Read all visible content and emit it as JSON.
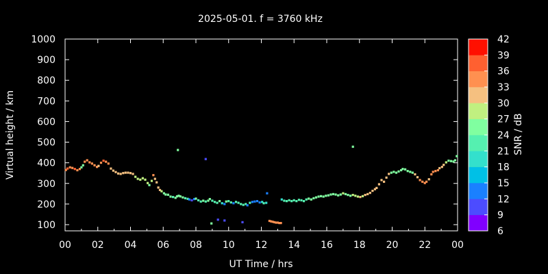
{
  "chart_data": {
    "type": "scatter",
    "title": "2025-05-01. f = 3760 kHz",
    "xlabel": "UT Time / hrs",
    "ylabel": "Virtual height / km",
    "xlim": [
      0,
      24
    ],
    "ylim": [
      70,
      1000
    ],
    "x_ticks": [
      "00",
      "02",
      "04",
      "06",
      "08",
      "10",
      "12",
      "14",
      "16",
      "18",
      "20",
      "22",
      "00"
    ],
    "y_ticks": [
      100,
      200,
      300,
      400,
      500,
      600,
      700,
      800,
      900,
      1000
    ],
    "grid": false,
    "colorbar": {
      "label": "SNR / dB",
      "range": [
        6,
        42
      ],
      "ticks": [
        6,
        9,
        12,
        15,
        18,
        21,
        24,
        27,
        30,
        33,
        36,
        39,
        42
      ],
      "colors": [
        "#8000ff",
        "#4c4cff",
        "#1a80ff",
        "#00c0e6",
        "#33e0cc",
        "#55f0b0",
        "#80ffa0",
        "#c0f080",
        "#f5c080",
        "#ff9050",
        "#ff6030",
        "#ff1000"
      ]
    },
    "series": [
      {
        "points": [
          [
            0.05,
            365,
            34
          ],
          [
            0.15,
            372,
            36
          ],
          [
            0.3,
            378,
            35
          ],
          [
            0.45,
            375,
            34
          ],
          [
            0.6,
            370,
            36
          ],
          [
            0.75,
            364,
            35
          ],
          [
            0.9,
            370,
            33
          ],
          [
            1.0,
            378,
            26
          ],
          [
            1.1,
            388,
            24
          ],
          [
            1.2,
            405,
            35
          ],
          [
            1.35,
            412,
            34
          ],
          [
            1.5,
            402,
            33
          ],
          [
            1.65,
            396,
            35
          ],
          [
            1.8,
            388,
            34
          ],
          [
            1.95,
            380,
            33
          ],
          [
            2.05,
            385,
            31
          ],
          [
            2.2,
            400,
            34
          ],
          [
            2.35,
            410,
            36
          ],
          [
            2.5,
            405,
            35
          ],
          [
            2.65,
            396,
            34
          ],
          [
            2.8,
            372,
            30
          ],
          [
            2.95,
            362,
            30
          ],
          [
            3.1,
            355,
            31
          ],
          [
            3.25,
            348,
            31
          ],
          [
            3.4,
            346,
            31
          ],
          [
            3.55,
            350,
            31
          ],
          [
            3.7,
            352,
            30
          ],
          [
            3.85,
            352,
            31
          ],
          [
            4.0,
            350,
            30
          ],
          [
            4.15,
            346,
            31
          ],
          [
            4.3,
            332,
            28
          ],
          [
            4.45,
            322,
            27
          ],
          [
            4.6,
            318,
            27
          ],
          [
            4.75,
            325,
            28
          ],
          [
            4.9,
            318,
            28
          ],
          [
            5.05,
            302,
            27
          ],
          [
            5.15,
            292,
            26
          ],
          [
            5.3,
            312,
            28
          ],
          [
            5.4,
            340,
            33
          ],
          [
            5.5,
            322,
            31
          ],
          [
            5.6,
            305,
            31
          ],
          [
            5.7,
            280,
            31
          ],
          [
            5.8,
            268,
            30
          ],
          [
            5.9,
            262,
            28
          ],
          [
            6.05,
            252,
            24
          ],
          [
            6.15,
            246,
            24
          ],
          [
            6.3,
            245,
            26
          ],
          [
            6.45,
            236,
            25
          ],
          [
            6.6,
            234,
            23
          ],
          [
            6.75,
            230,
            25
          ],
          [
            6.85,
            237,
            24
          ],
          [
            6.95,
            240,
            26
          ],
          [
            7.05,
            237,
            25
          ],
          [
            7.2,
            232,
            24
          ],
          [
            7.35,
            228,
            23
          ],
          [
            7.5,
            225,
            23
          ],
          [
            7.6,
            222,
            14
          ],
          [
            7.75,
            218,
            11
          ],
          [
            7.9,
            224,
            13
          ],
          [
            8.0,
            226,
            25
          ],
          [
            8.15,
            218,
            23
          ],
          [
            8.3,
            212,
            22
          ],
          [
            8.45,
            216,
            24
          ],
          [
            8.6,
            212,
            22
          ],
          [
            8.75,
            216,
            24
          ],
          [
            8.85,
            224,
            24
          ],
          [
            9.0,
            216,
            23
          ],
          [
            9.15,
            210,
            22
          ],
          [
            9.3,
            206,
            22
          ],
          [
            9.45,
            214,
            24
          ],
          [
            9.6,
            204,
            20
          ],
          [
            9.75,
            200,
            14
          ],
          [
            9.85,
            212,
            24
          ],
          [
            10.0,
            214,
            22
          ],
          [
            10.15,
            208,
            21
          ],
          [
            10.3,
            204,
            13
          ],
          [
            10.45,
            210,
            21
          ],
          [
            10.6,
            206,
            23
          ],
          [
            10.75,
            200,
            21
          ],
          [
            10.9,
            196,
            21
          ],
          [
            11.05,
            200,
            21
          ],
          [
            11.15,
            194,
            13
          ],
          [
            11.3,
            206,
            22
          ],
          [
            11.45,
            210,
            14
          ],
          [
            11.6,
            212,
            13
          ],
          [
            11.75,
            214,
            12
          ],
          [
            11.9,
            208,
            14
          ],
          [
            12.05,
            210,
            20
          ],
          [
            12.15,
            204,
            21
          ],
          [
            12.3,
            206,
            20
          ],
          [
            6.9,
            462,
            24
          ],
          [
            8.6,
            418,
            11
          ],
          [
            17.6,
            478,
            24
          ],
          [
            12.35,
            252,
            14
          ],
          [
            8.95,
            106,
            24
          ],
          [
            9.35,
            124,
            11
          ],
          [
            9.75,
            120,
            11
          ],
          [
            10.85,
            112,
            11
          ],
          [
            12.5,
            118,
            33
          ],
          [
            12.6,
            116,
            34
          ],
          [
            12.7,
            114,
            34
          ],
          [
            12.8,
            112,
            35
          ],
          [
            12.9,
            110,
            34
          ],
          [
            13.0,
            110,
            35
          ],
          [
            13.1,
            108,
            34
          ],
          [
            13.2,
            108,
            35
          ],
          [
            13.25,
            222,
            20
          ],
          [
            13.4,
            216,
            21
          ],
          [
            13.55,
            214,
            22
          ],
          [
            13.7,
            218,
            21
          ],
          [
            13.85,
            214,
            21
          ],
          [
            14.0,
            218,
            22
          ],
          [
            14.15,
            214,
            22
          ],
          [
            14.3,
            220,
            21
          ],
          [
            14.45,
            218,
            22
          ],
          [
            14.6,
            214,
            22
          ],
          [
            14.75,
            222,
            22
          ],
          [
            14.9,
            226,
            24
          ],
          [
            15.05,
            222,
            24
          ],
          [
            15.2,
            228,
            24
          ],
          [
            15.35,
            232,
            24
          ],
          [
            15.5,
            236,
            24
          ],
          [
            15.65,
            238,
            26
          ],
          [
            15.8,
            236,
            25
          ],
          [
            15.95,
            240,
            25
          ],
          [
            16.1,
            242,
            26
          ],
          [
            16.25,
            246,
            26
          ],
          [
            16.4,
            248,
            26
          ],
          [
            16.55,
            246,
            26
          ],
          [
            16.7,
            242,
            26
          ],
          [
            16.85,
            246,
            26
          ],
          [
            17.0,
            252,
            28
          ],
          [
            17.15,
            248,
            26
          ],
          [
            17.3,
            244,
            25
          ],
          [
            17.45,
            240,
            26
          ],
          [
            17.6,
            244,
            27
          ],
          [
            17.75,
            240,
            28
          ],
          [
            17.9,
            236,
            28
          ],
          [
            18.05,
            234,
            30
          ],
          [
            18.2,
            238,
            29
          ],
          [
            18.35,
            244,
            30
          ],
          [
            18.5,
            248,
            30
          ],
          [
            18.65,
            254,
            30
          ],
          [
            18.8,
            264,
            30
          ],
          [
            18.95,
            272,
            31
          ],
          [
            19.05,
            278,
            31
          ],
          [
            19.2,
            296,
            31
          ],
          [
            19.35,
            316,
            32
          ],
          [
            19.5,
            308,
            31
          ],
          [
            19.65,
            328,
            32
          ],
          [
            19.8,
            346,
            30
          ],
          [
            19.95,
            352,
            26
          ],
          [
            20.1,
            356,
            25
          ],
          [
            20.25,
            352,
            26
          ],
          [
            20.4,
            358,
            25
          ],
          [
            20.55,
            364,
            26
          ],
          [
            20.65,
            370,
            25
          ],
          [
            20.8,
            368,
            26
          ],
          [
            20.95,
            360,
            26
          ],
          [
            21.1,
            356,
            26
          ],
          [
            21.25,
            352,
            26
          ],
          [
            21.4,
            344,
            30
          ],
          [
            21.55,
            330,
            32
          ],
          [
            21.7,
            316,
            33
          ],
          [
            21.85,
            308,
            35
          ],
          [
            22.0,
            302,
            35
          ],
          [
            22.1,
            308,
            34
          ],
          [
            22.25,
            320,
            31
          ],
          [
            22.4,
            344,
            34
          ],
          [
            22.5,
            356,
            35
          ],
          [
            22.65,
            360,
            34
          ],
          [
            22.8,
            364,
            33
          ],
          [
            22.9,
            374,
            31
          ],
          [
            23.05,
            380,
            31
          ],
          [
            23.15,
            390,
            30
          ],
          [
            23.3,
            402,
            27
          ],
          [
            23.45,
            410,
            26
          ],
          [
            23.6,
            408,
            25
          ],
          [
            23.75,
            406,
            25
          ],
          [
            23.85,
            412,
            25
          ],
          [
            23.95,
            432,
            25
          ]
        ]
      }
    ]
  }
}
